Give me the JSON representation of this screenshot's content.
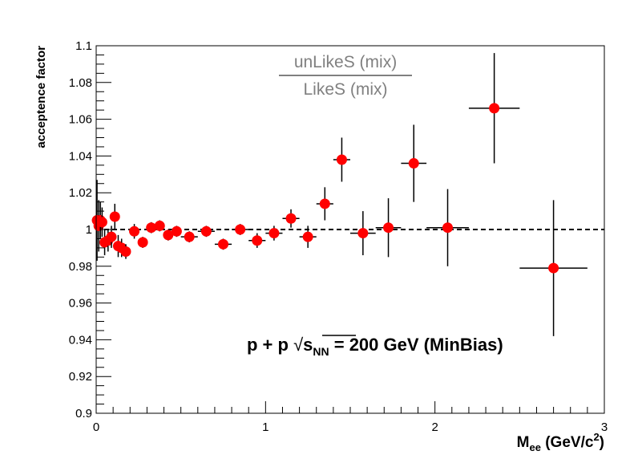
{
  "chart_data": {
    "type": "scatter",
    "xlabel_main": "M",
    "xlabel_sub": "ee",
    "xlabel_units": " (GeV/c",
    "xlabel_sup": "2",
    "xlabel_close": ")",
    "ylabel": "acceptence factor",
    "xlim": [
      0,
      3
    ],
    "ylim": [
      0.9,
      1.1
    ],
    "x_ticks": [
      0,
      1,
      2,
      3
    ],
    "x_tick_labels": [
      "0",
      "1",
      "2",
      "3"
    ],
    "y_ticks": [
      0.9,
      0.92,
      0.94,
      0.96,
      0.98,
      1.0,
      1.02,
      1.04,
      1.06,
      1.08,
      1.1
    ],
    "y_tick_labels": [
      "0.9",
      "0.92",
      "0.94",
      "0.96",
      "0.98",
      "1",
      "1.02",
      "1.04",
      "1.06",
      "1.08",
      "1.1"
    ],
    "reference_line_y": 1.0,
    "grid": false,
    "ratio_numerator": "unLikeS (mix)",
    "ratio_denominator": "LikeS (mix)",
    "annotation": {
      "prefix": "p + p  ",
      "sqrt_symbol": "√",
      "sqrt_var": "s",
      "sqrt_sub": "NN",
      "suffix": " = 200 GeV (MinBias)"
    },
    "marker_color": "#ff0000",
    "series": [
      {
        "x": [
          0.005,
          0.015,
          0.025,
          0.035,
          0.05,
          0.07,
          0.09,
          0.11,
          0.13,
          0.15,
          0.175,
          0.225,
          0.275,
          0.325,
          0.375,
          0.425,
          0.475,
          0.55,
          0.65,
          0.75,
          0.85,
          0.95,
          1.05,
          1.15,
          1.25,
          1.35,
          1.45,
          1.575,
          1.725,
          1.875,
          2.075,
          2.35,
          2.7
        ],
        "y": [
          1.005,
          1.002,
          1.005,
          1.004,
          0.993,
          0.994,
          0.996,
          1.007,
          0.991,
          0.99,
          0.988,
          0.999,
          0.993,
          1.001,
          1.002,
          0.997,
          0.999,
          0.996,
          0.999,
          0.992,
          1.0,
          0.994,
          0.998,
          1.006,
          0.996,
          1.014,
          1.038,
          0.998,
          1.001,
          1.036,
          1.001,
          1.066,
          0.979
        ],
        "xerr": [
          0.005,
          0.005,
          0.005,
          0.005,
          0.01,
          0.01,
          0.01,
          0.01,
          0.01,
          0.01,
          0.025,
          0.025,
          0.025,
          0.025,
          0.025,
          0.025,
          0.025,
          0.05,
          0.05,
          0.05,
          0.05,
          0.05,
          0.05,
          0.05,
          0.05,
          0.05,
          0.05,
          0.075,
          0.075,
          0.075,
          0.125,
          0.15,
          0.2
        ],
        "yerr": [
          0.022,
          0.014,
          0.01,
          0.008,
          0.007,
          0.006,
          0.006,
          0.007,
          0.006,
          0.005,
          0.004,
          0.004,
          0.003,
          0.003,
          0.003,
          0.003,
          0.003,
          0.003,
          0.003,
          0.003,
          0.003,
          0.004,
          0.004,
          0.005,
          0.006,
          0.009,
          0.012,
          0.012,
          0.016,
          0.021,
          0.021,
          0.03,
          0.037
        ]
      }
    ]
  }
}
